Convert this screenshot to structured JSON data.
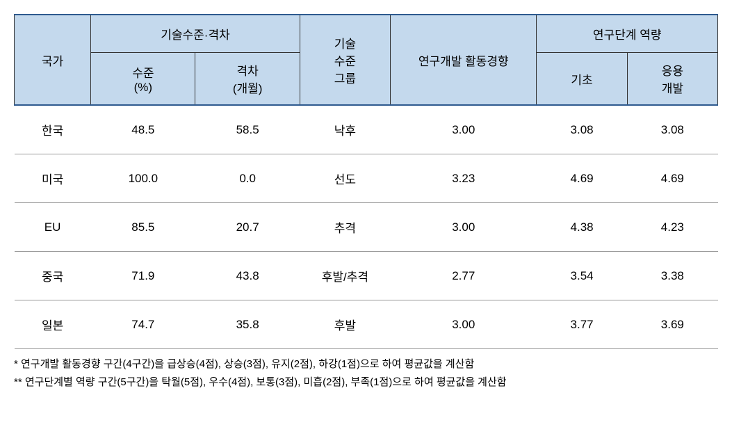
{
  "table": {
    "headers": {
      "country": "국가",
      "tech_level_gap": "기술수준·격차",
      "level_pct": "수준\n(%)",
      "gap_months": "격차\n(개월)",
      "tech_group": "기술\n수준\n그룹",
      "rd_trend": "연구개발 활동경향",
      "research_capacity": "연구단계 역량",
      "basic": "기초",
      "applied": "응용\n개발"
    },
    "rows": [
      {
        "country": "한국",
        "level": "48.5",
        "gap": "58.5",
        "group": "낙후",
        "trend": "3.00",
        "basic": "3.08",
        "applied": "3.08"
      },
      {
        "country": "미국",
        "level": "100.0",
        "gap": "0.0",
        "group": "선도",
        "trend": "3.23",
        "basic": "4.69",
        "applied": "4.69"
      },
      {
        "country": "EU",
        "level": "85.5",
        "gap": "20.7",
        "group": "추격",
        "trend": "3.00",
        "basic": "4.38",
        "applied": "4.23"
      },
      {
        "country": "중국",
        "level": "71.9",
        "gap": "43.8",
        "group": "후발/추격",
        "trend": "2.77",
        "basic": "3.54",
        "applied": "3.38"
      },
      {
        "country": "일본",
        "level": "74.7",
        "gap": "35.8",
        "group": "후발",
        "trend": "3.00",
        "basic": "3.77",
        "applied": "3.69"
      }
    ],
    "footnotes": [
      "* 연구개발 활동경향 구간(4구간)을 급상승(4점), 상승(3점), 유지(2점), 하강(1점)으로 하여 평균값을 계산함",
      "** 연구단계별 역량 구간(5구간)을 탁월(5점), 우수(4점), 보통(3점), 미흡(2점), 부족(1점)으로 하여 평균값을 계산함"
    ],
    "styling": {
      "header_bg": "#c4d9ed",
      "border_accent": "#2e5a8f",
      "border_grid": "#333333",
      "row_border": "#999999",
      "font_size_header": 17,
      "font_size_cell": 17,
      "font_size_footnote": 15,
      "background": "#ffffff"
    }
  }
}
